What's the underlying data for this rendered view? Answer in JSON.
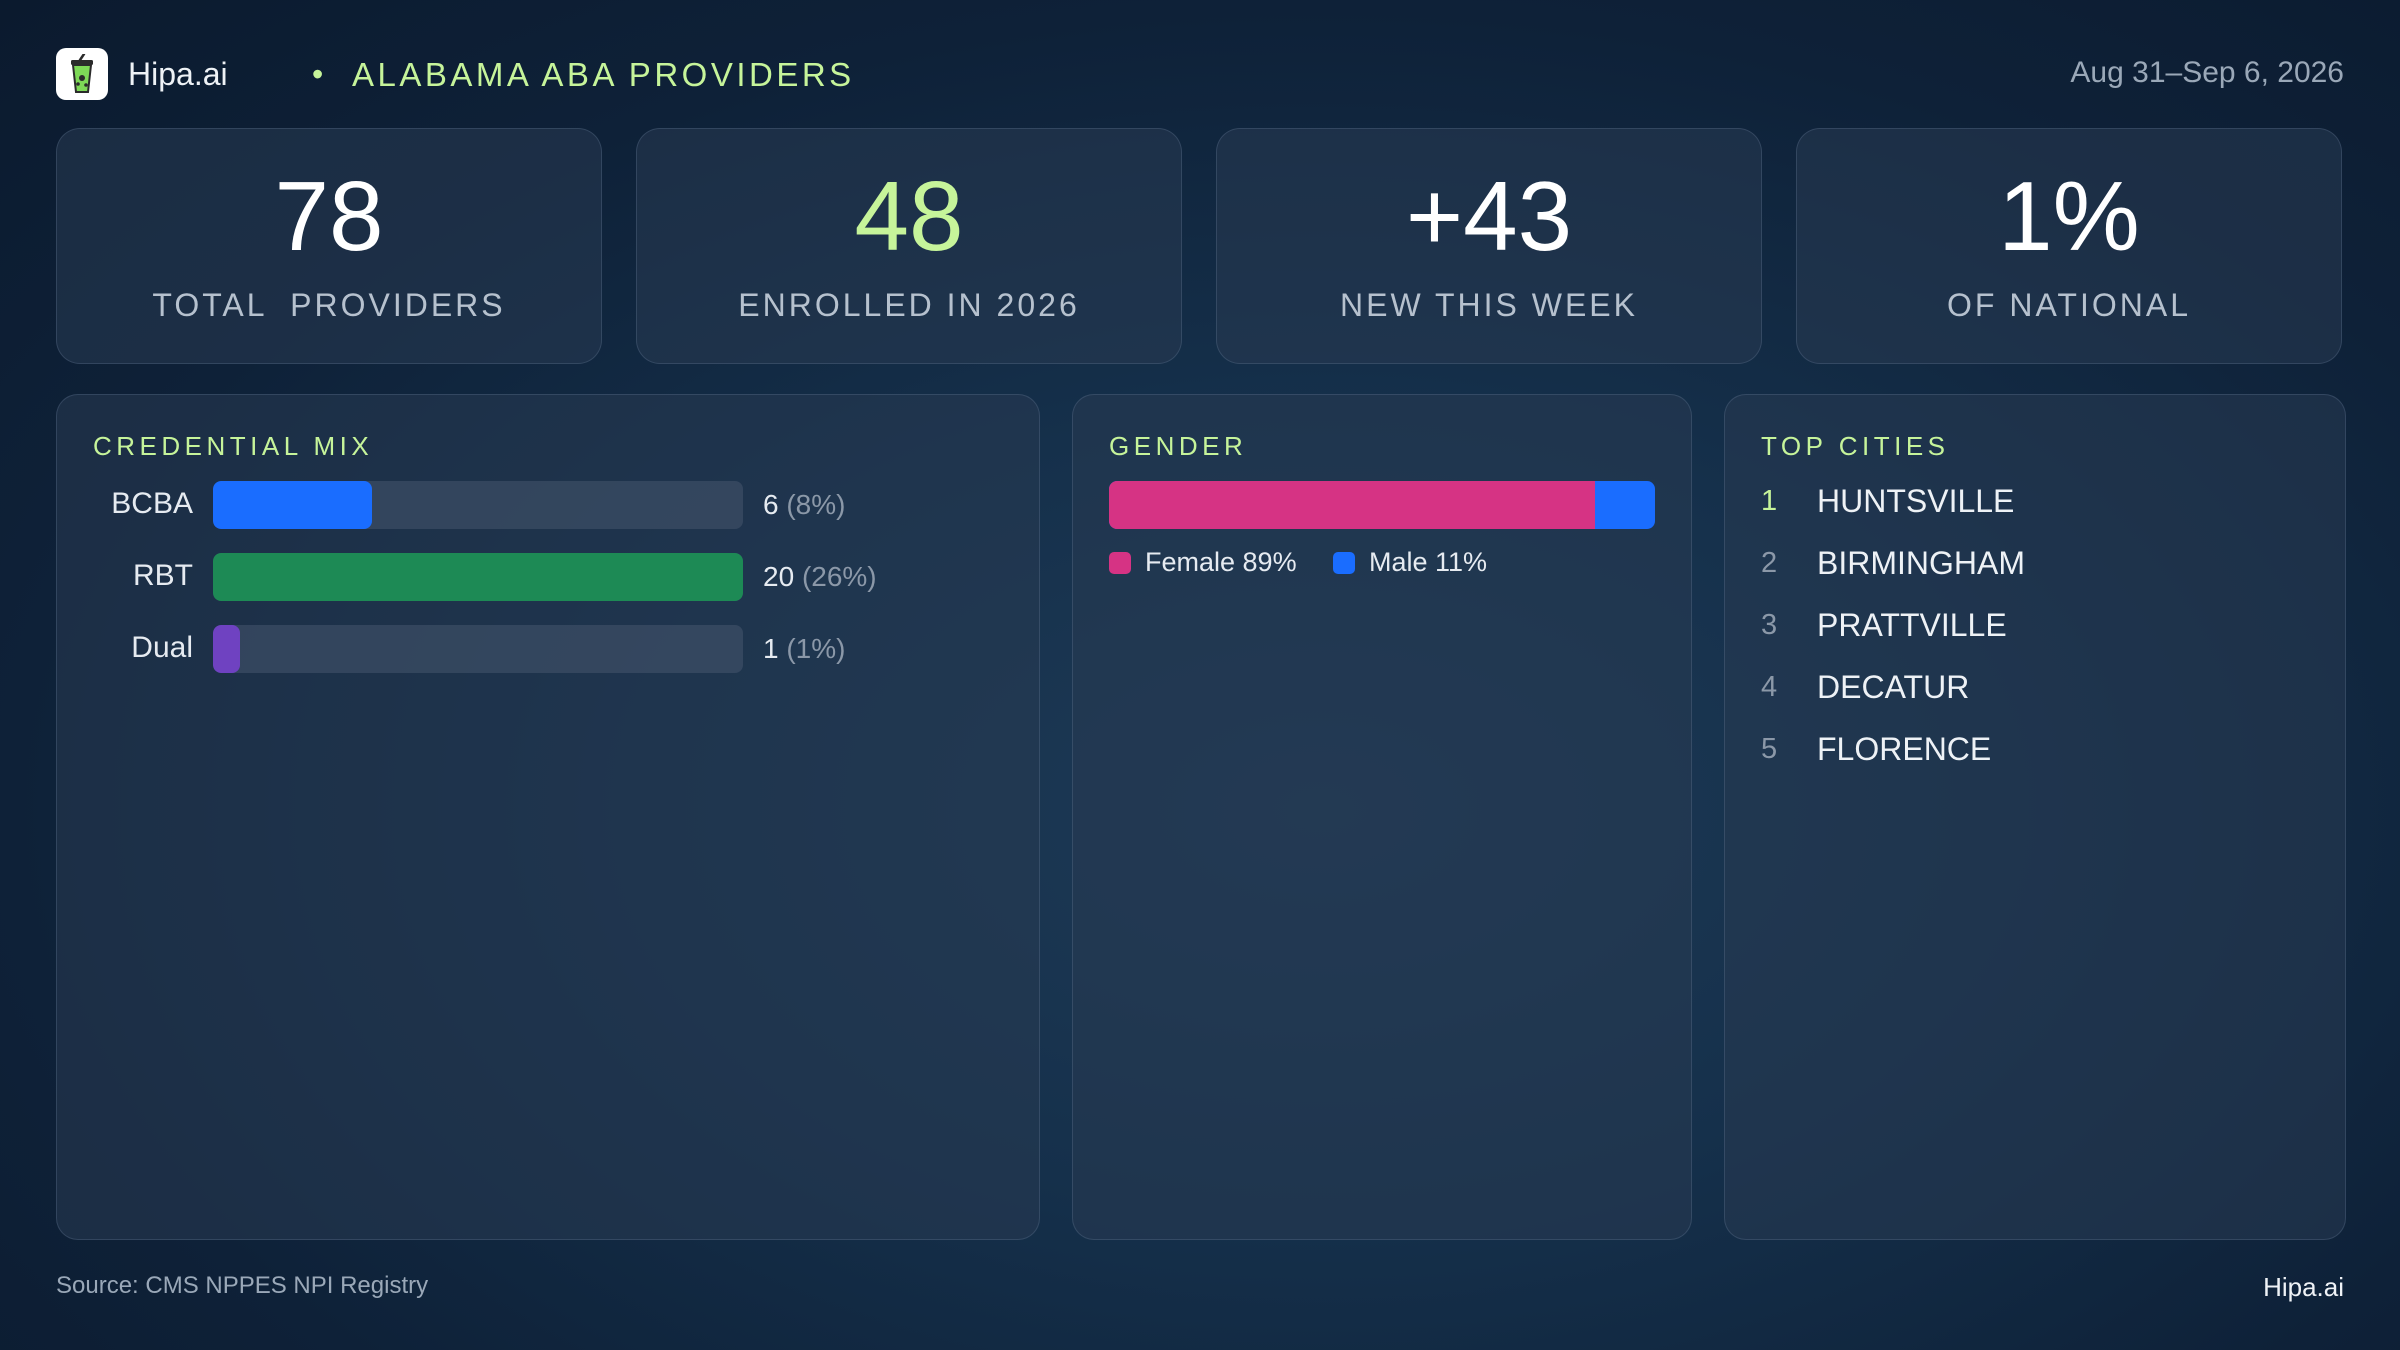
{
  "header": {
    "brand": "Hipa.ai",
    "separator": "•",
    "title": "ALABAMA ABA PROVIDERS",
    "date_range": "Aug 31–Sep 6, 2026",
    "logo_icon": "cup-icon"
  },
  "stats": [
    {
      "value": "78",
      "label": "TOTAL  PROVIDERS"
    },
    {
      "value": "48",
      "label": "ENROLLED IN 2026"
    },
    {
      "value": "+43",
      "label": "NEW THIS WEEK"
    },
    {
      "value": "1%",
      "label": "OF NATIONAL"
    }
  ],
  "credential_mix": {
    "title": "CREDENTIAL MIX",
    "max_value": 20,
    "items": [
      {
        "label": "BCBA",
        "count": "6",
        "pct": "(8%)",
        "value": 6,
        "color": "#1a6dff"
      },
      {
        "label": "RBT",
        "count": "20",
        "pct": "(26%)",
        "value": 20,
        "color": "#1d8a55"
      },
      {
        "label": "Dual",
        "count": "1",
        "pct": "(1%)",
        "value": 1,
        "color": "#6f42c1"
      }
    ]
  },
  "gender": {
    "title": "GENDER",
    "female_label": "Female 89%",
    "male_label": "Male 11%",
    "female_fraction": 0.89,
    "female_color": "#d63384",
    "male_color": "#1a6dff"
  },
  "top_cities": {
    "title": "TOP CITIES",
    "items": [
      {
        "rank": "1",
        "name": "HUNTSVILLE"
      },
      {
        "rank": "2",
        "name": "BIRMINGHAM"
      },
      {
        "rank": "3",
        "name": "PRATTVILLE"
      },
      {
        "rank": "4",
        "name": "DECATUR"
      },
      {
        "rank": "5",
        "name": "FLORENCE"
      }
    ]
  },
  "footer": {
    "source": "Source: CMS NPPES NPI Registry",
    "brand": "Hipa.ai"
  }
}
